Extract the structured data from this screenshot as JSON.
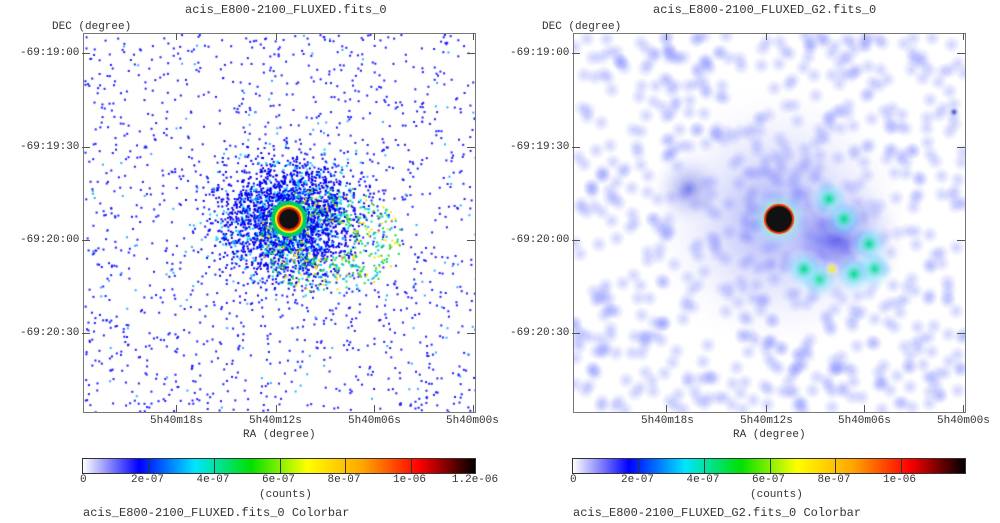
{
  "panels": [
    {
      "title": "acis_E800-2100_FLUXED.fits_0",
      "y_axis_label": "DEC (degree)",
      "x_axis_label": "RA (degree)",
      "y_ticks": [
        "-69:19:00",
        "-69:19:30",
        "-69:20:00",
        "-69:20:30"
      ],
      "x_ticks": [
        "5h40m18s",
        "5h40m12s",
        "5h40m06s",
        "5h40m00s"
      ],
      "colorbar": {
        "ticks": [
          "0",
          "2e-07",
          "4e-07",
          "6e-07",
          "8e-07",
          "1e-06",
          "1.2e-06"
        ],
        "unit": "(counts)",
        "caption": "acis_E800-2100_FLUXED.fits_0 Colorbar"
      }
    },
    {
      "title": "acis_E800-2100_FLUXED_G2.fits_0",
      "y_axis_label": "DEC (degree)",
      "x_axis_label": "RA (degree)",
      "y_ticks": [
        "-69:19:00",
        "-69:19:30",
        "-69:20:00",
        "-69:20:30"
      ],
      "x_ticks": [
        "5h40m18s",
        "5h40m12s",
        "5h40m06s",
        "5h40m00s"
      ],
      "colorbar": {
        "ticks": [
          "0",
          "2e-07",
          "4e-07",
          "6e-07",
          "8e-07",
          "1e-06"
        ],
        "unit": "(counts)",
        "caption": "acis_E800-2100_FLUXED_G2.fits_0 Colorbar"
      }
    }
  ],
  "colormap": [
    "#ffffff",
    "#0000ff",
    "#00e5ff",
    "#00e000",
    "#ffff00",
    "#ffa500",
    "#ff0000",
    "#000000"
  ]
}
